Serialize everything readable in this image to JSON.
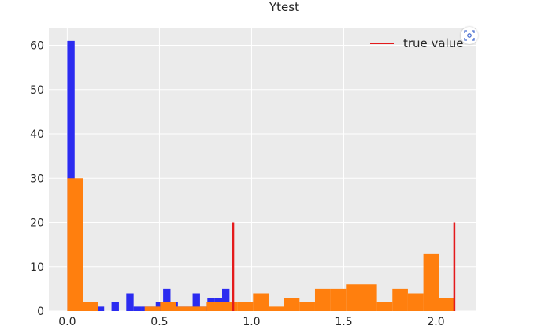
{
  "chart_data": {
    "type": "bar",
    "title": "Ytest",
    "xlabel": "",
    "ylabel": "",
    "xlim": [
      -0.1,
      2.22
    ],
    "ylim": [
      0,
      64
    ],
    "x_ticks": [
      "0.0",
      "0.5",
      "1.0",
      "1.5",
      "2.0"
    ],
    "x_tick_values": [
      0.0,
      0.5,
      1.0,
      1.5,
      2.0
    ],
    "y_ticks": [
      "0",
      "10",
      "20",
      "30",
      "40",
      "50",
      "60"
    ],
    "y_tick_values": [
      0,
      10,
      20,
      30,
      40,
      50,
      60
    ],
    "grid": true,
    "legend_position": "top-right",
    "legend": [
      {
        "name": "true value",
        "color": "#e41a1c"
      }
    ],
    "series": [
      {
        "color": "#2b2bf0",
        "bin_edges": [
          0.0,
          0.04,
          0.08,
          0.12,
          0.16,
          0.2,
          0.24,
          0.28,
          0.32,
          0.36,
          0.4,
          0.44,
          0.48,
          0.52,
          0.56,
          0.6,
          0.64,
          0.68,
          0.72,
          0.76,
          0.8,
          0.84,
          0.88
        ],
        "values": [
          61,
          0,
          0,
          0,
          1,
          0,
          2,
          0,
          4,
          1,
          1,
          1,
          2,
          5,
          2,
          1,
          1,
          4,
          1,
          3,
          3,
          5
        ]
      },
      {
        "color": "#ff7f0e",
        "bin_edges": [
          0.0,
          0.084,
          0.168,
          0.252,
          0.336,
          0.42,
          0.504,
          0.588,
          0.672,
          0.756,
          0.84,
          0.924,
          1.008,
          1.092,
          1.176,
          1.26,
          1.344,
          1.428,
          1.512,
          1.596,
          1.68,
          1.764,
          1.848,
          1.932,
          2.016,
          2.1
        ],
        "values": [
          30,
          2,
          0,
          0,
          0,
          1,
          2,
          1,
          1,
          2,
          2,
          2,
          4,
          1,
          3,
          2,
          5,
          5,
          6,
          6,
          2,
          5,
          4,
          13,
          3
        ]
      }
    ],
    "vlines": [
      {
        "x": 0.9,
        "ymax": 20,
        "color": "#e41a1c"
      },
      {
        "x": 2.1,
        "ymax": 20,
        "color": "#e41a1c"
      }
    ]
  },
  "icons": {
    "action": "focus-icon"
  }
}
